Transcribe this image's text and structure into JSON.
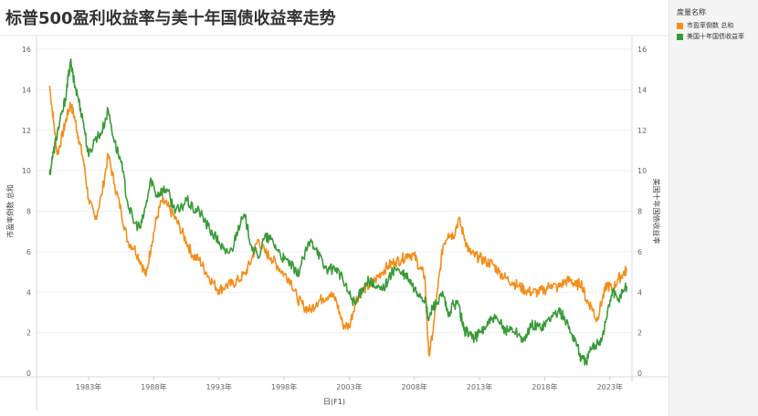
{
  "title": "标普500盈利收益率与美十年国债收益率走势",
  "legend": {
    "title": "度量名称",
    "items": [
      {
        "label": "市盈率倒数 总和",
        "color": "#f28e1c"
      },
      {
        "label": "美国十年国债收益率",
        "color": "#3a9a3a"
      }
    ]
  },
  "chart_data": {
    "type": "line",
    "xlabel": "日(F1)",
    "ylabel_left": "市盈率倒数 总和",
    "ylabel_right": "美国十年国债收益率",
    "xlim": [
      1979.0,
      2024.7
    ],
    "ylim": [
      0,
      16
    ],
    "yticks": [
      0,
      2,
      4,
      6,
      8,
      10,
      12,
      14,
      16
    ],
    "xticks": [
      {
        "value": 1983,
        "label": "1983年"
      },
      {
        "value": 1988,
        "label": "1988年"
      },
      {
        "value": 1993,
        "label": "1993年"
      },
      {
        "value": 1998,
        "label": "1998年"
      },
      {
        "value": 2003,
        "label": "2003年"
      },
      {
        "value": 2008,
        "label": "2008年"
      },
      {
        "value": 2013,
        "label": "2013年"
      },
      {
        "value": 2018,
        "label": "2018年"
      },
      {
        "value": 2023,
        "label": "2023年"
      }
    ],
    "grid": true,
    "series": [
      {
        "name": "市盈率倒数 总和",
        "color": "#f28e1c",
        "x": [
          1980.0,
          1980.3,
          1980.6,
          1981.0,
          1981.3,
          1981.6,
          1981.9,
          1982.2,
          1982.6,
          1983.0,
          1983.5,
          1984.0,
          1984.5,
          1985.0,
          1985.5,
          1986.0,
          1986.5,
          1987.0,
          1987.4,
          1987.8,
          1988.2,
          1988.6,
          1989.0,
          1989.5,
          1990.0,
          1990.5,
          1991.0,
          1991.5,
          1992.0,
          1992.5,
          1993.0,
          1993.5,
          1994.0,
          1994.5,
          1995.0,
          1995.5,
          1996.0,
          1996.5,
          1997.0,
          1997.5,
          1998.0,
          1998.5,
          1999.0,
          1999.5,
          2000.0,
          2000.5,
          2001.0,
          2001.5,
          2002.0,
          2002.5,
          2003.0,
          2003.5,
          2004.0,
          2004.5,
          2005.0,
          2005.5,
          2006.0,
          2006.5,
          2007.0,
          2007.5,
          2008.0,
          2008.4,
          2008.8,
          2009.1,
          2009.4,
          2009.8,
          2010.2,
          2010.6,
          2011.0,
          2011.4,
          2011.8,
          2012.2,
          2012.6,
          2013.0,
          2013.5,
          2014.0,
          2014.5,
          2015.0,
          2015.5,
          2016.0,
          2016.5,
          2017.0,
          2017.5,
          2018.0,
          2018.5,
          2019.0,
          2019.5,
          2020.0,
          2020.4,
          2020.8,
          2021.2,
          2021.6,
          2022.0,
          2022.4,
          2022.8,
          2023.2,
          2023.6,
          2024.0,
          2024.3
        ],
        "y": [
          14.2,
          12.5,
          10.8,
          11.8,
          12.6,
          13.3,
          12.7,
          11.7,
          10.5,
          8.6,
          7.6,
          8.8,
          10.8,
          9.3,
          8.0,
          6.5,
          6.2,
          5.5,
          4.8,
          6.3,
          7.6,
          8.5,
          8.3,
          7.8,
          7.2,
          6.5,
          5.8,
          5.6,
          5.0,
          4.5,
          4.1,
          4.3,
          4.4,
          4.6,
          4.9,
          5.6,
          6.6,
          6.0,
          5.7,
          5.3,
          4.9,
          4.6,
          3.7,
          3.3,
          3.1,
          3.5,
          3.7,
          3.9,
          3.6,
          2.4,
          2.3,
          3.6,
          4.1,
          4.3,
          4.6,
          5.0,
          5.3,
          5.5,
          5.6,
          5.9,
          5.8,
          5.2,
          4.8,
          0.9,
          1.9,
          4.2,
          6.3,
          6.9,
          6.8,
          7.6,
          6.8,
          6.0,
          5.8,
          5.7,
          5.5,
          5.4,
          5.0,
          4.7,
          4.5,
          4.3,
          4.1,
          4.0,
          4.0,
          4.1,
          4.4,
          4.2,
          4.5,
          4.6,
          4.3,
          4.5,
          3.6,
          3.3,
          2.6,
          3.6,
          4.4,
          4.1,
          4.6,
          4.9,
          5.1
        ]
      },
      {
        "name": "美国十年国债收益率",
        "color": "#3a9a3a",
        "x": [
          1980.0,
          1980.3,
          1980.6,
          1981.0,
          1981.3,
          1981.6,
          1981.9,
          1982.2,
          1982.6,
          1983.0,
          1983.5,
          1984.0,
          1984.5,
          1985.0,
          1985.5,
          1986.0,
          1986.5,
          1987.0,
          1987.4,
          1987.8,
          1988.2,
          1988.6,
          1989.0,
          1989.5,
          1990.0,
          1990.5,
          1991.0,
          1991.5,
          1992.0,
          1992.5,
          1993.0,
          1993.5,
          1994.0,
          1994.5,
          1995.0,
          1995.5,
          1996.0,
          1996.5,
          1997.0,
          1997.5,
          1998.0,
          1998.5,
          1999.0,
          1999.5,
          2000.0,
          2000.5,
          2001.0,
          2001.5,
          2002.0,
          2002.5,
          2003.0,
          2003.5,
          2004.0,
          2004.5,
          2005.0,
          2005.5,
          2006.0,
          2006.5,
          2007.0,
          2007.5,
          2008.0,
          2008.4,
          2008.8,
          2009.1,
          2009.4,
          2009.8,
          2010.2,
          2010.6,
          2011.0,
          2011.4,
          2011.8,
          2012.2,
          2012.6,
          2013.0,
          2013.5,
          2014.0,
          2014.5,
          2015.0,
          2015.5,
          2016.0,
          2016.5,
          2017.0,
          2017.5,
          2018.0,
          2018.5,
          2019.0,
          2019.5,
          2020.0,
          2020.4,
          2020.8,
          2021.2,
          2021.6,
          2022.0,
          2022.4,
          2022.8,
          2023.2,
          2023.6,
          2024.0,
          2024.3
        ],
        "y": [
          9.8,
          10.9,
          11.9,
          12.9,
          13.9,
          15.4,
          14.3,
          13.6,
          12.4,
          10.7,
          11.6,
          11.9,
          13.0,
          11.4,
          10.4,
          8.4,
          7.4,
          7.2,
          8.3,
          9.6,
          8.8,
          9.0,
          9.1,
          8.2,
          8.0,
          8.6,
          8.1,
          8.0,
          7.4,
          6.9,
          6.5,
          5.9,
          6.1,
          7.3,
          7.7,
          6.3,
          5.7,
          6.7,
          6.6,
          6.1,
          5.6,
          5.4,
          4.8,
          5.7,
          6.5,
          6.2,
          5.3,
          5.1,
          5.2,
          4.6,
          3.9,
          3.4,
          4.2,
          4.6,
          4.2,
          4.1,
          4.6,
          5.2,
          4.9,
          4.7,
          4.1,
          3.9,
          3.6,
          2.6,
          3.3,
          3.5,
          3.9,
          2.8,
          3.4,
          3.4,
          2.1,
          2.0,
          1.7,
          2.0,
          2.3,
          2.7,
          2.5,
          2.1,
          2.2,
          1.9,
          1.6,
          2.4,
          2.3,
          2.4,
          2.8,
          3.0,
          2.8,
          2.0,
          1.6,
          0.7,
          0.6,
          1.2,
          1.5,
          1.7,
          2.9,
          4.1,
          3.6,
          4.1,
          4.3
        ]
      }
    ]
  }
}
